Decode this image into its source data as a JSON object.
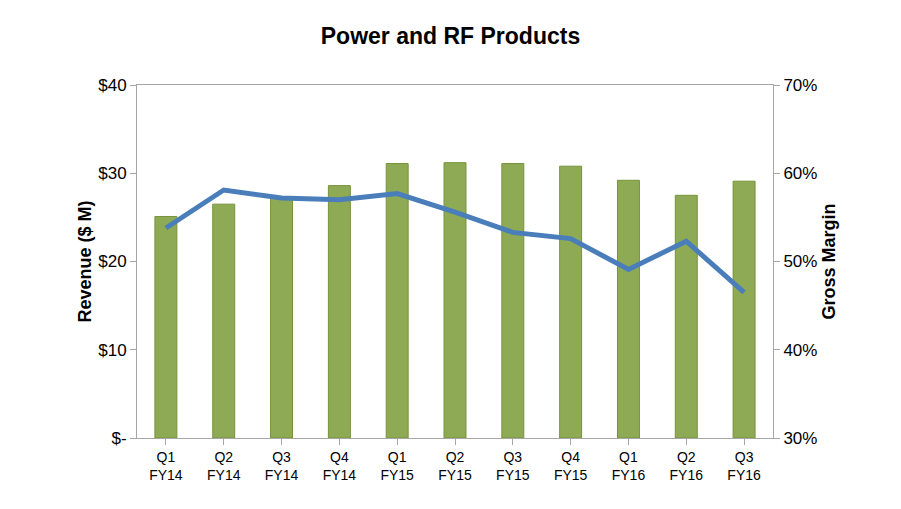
{
  "chart_data": {
    "type": "bar",
    "title": "Power and RF Products",
    "y_label": "Revenue ($ M)",
    "y2_label": "Gross Margin",
    "categories": [
      "Q1 FY14",
      "Q2 FY14",
      "Q3 FY14",
      "Q4 FY14",
      "Q1 FY15",
      "Q2 FY15",
      "Q3 FY15",
      "Q4 FY15",
      "Q1 FY16",
      "Q2 FY16",
      "Q3 FY16"
    ],
    "series": [
      {
        "type": "bar",
        "color": "#8faa55",
        "values": [
          25.1,
          26.5,
          27.3,
          28.6,
          31.1,
          31.2,
          31.1,
          30.8,
          29.2,
          27.5,
          29.1
        ]
      },
      {
        "type": "line",
        "color": "#4a7ebb",
        "axis": "y2",
        "values": [
          53.8,
          58.1,
          57.2,
          57.0,
          57.7,
          55.6,
          53.3,
          52.6,
          49.1,
          52.3,
          46.5
        ]
      }
    ],
    "ylim": [
      0,
      40
    ],
    "yticks": [
      {
        "value": 0,
        "label": "$-"
      },
      {
        "value": 10,
        "label": "$10"
      },
      {
        "value": 20,
        "label": "$20"
      },
      {
        "value": 30,
        "label": "$30"
      },
      {
        "value": 40,
        "label": "$40"
      }
    ],
    "y2lim": [
      30,
      70
    ],
    "y2ticks": [
      {
        "value": 30,
        "label": "30%"
      },
      {
        "value": 40,
        "label": "40%"
      },
      {
        "value": 50,
        "label": "50%"
      },
      {
        "value": 60,
        "label": "60%"
      },
      {
        "value": 70,
        "label": "70%"
      }
    ],
    "grid": false
  }
}
